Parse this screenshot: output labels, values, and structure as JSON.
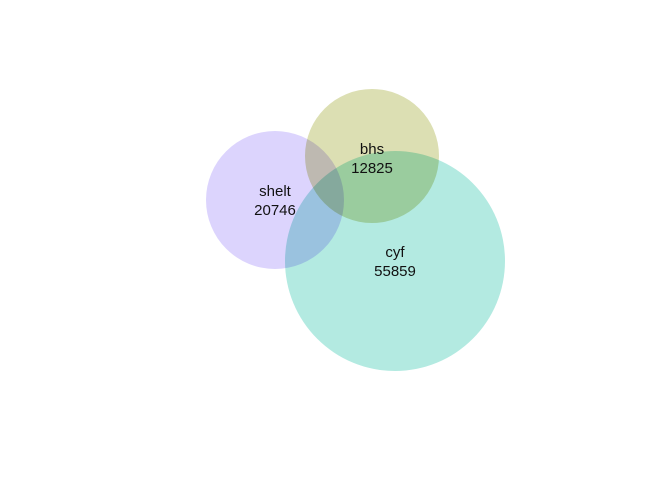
{
  "sets": [
    {
      "id": "shelt",
      "label": "shelt",
      "count": "20746",
      "color": "#dcd4fd"
    },
    {
      "id": "bhs",
      "label": "bhs",
      "count": "12825",
      "color": "#dcdfb3"
    },
    {
      "id": "cyf",
      "label": "cyf",
      "count": "55859",
      "color": "#b3eae1"
    }
  ]
}
